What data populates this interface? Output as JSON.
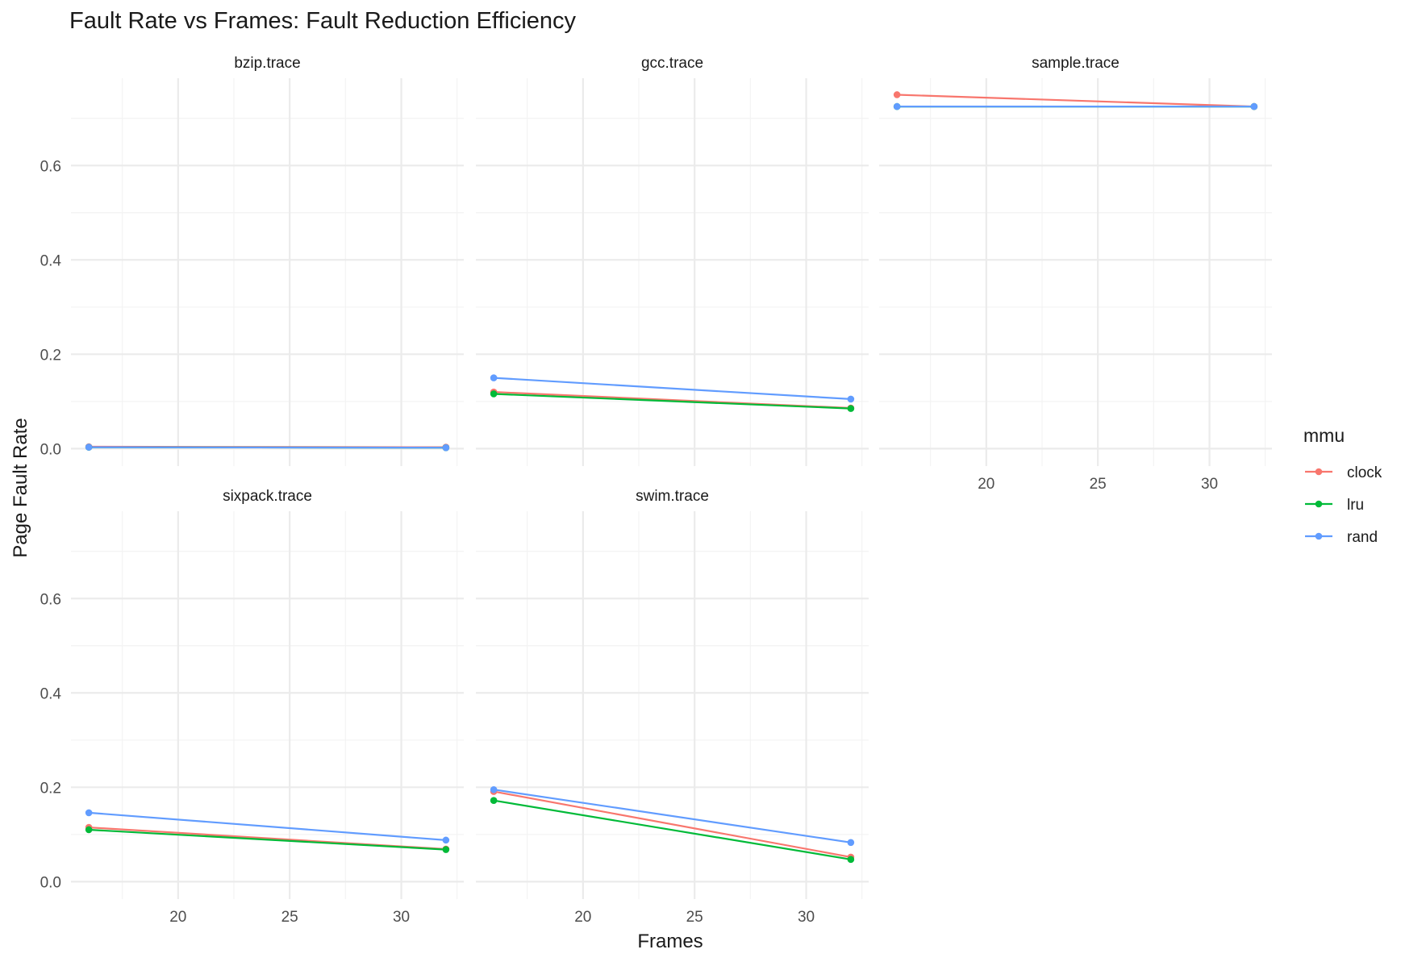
{
  "colors": {
    "clock": "#F8766D",
    "lru": "#00BA38",
    "rand": "#619CFF",
    "grid_major": "#EBEBEB",
    "grid_minor": "#F3F3F3",
    "text": "#1A1A1A",
    "tick_text": "#4D4D4D"
  },
  "chart_data": {
    "type": "line",
    "title": "Fault Rate vs Frames: Fault Reduction Efficiency",
    "xlabel": "Frames",
    "ylabel": "Page Fault Rate",
    "xlim": [
      15.2,
      32.8
    ],
    "ylim": [
      -0.037,
      0.785
    ],
    "x_ticks": [
      20,
      25,
      30
    ],
    "y_ticks": [
      0.0,
      0.2,
      0.4,
      0.6
    ],
    "grid": true,
    "legend": {
      "title": "mmu",
      "position": "right",
      "entries": [
        "clock",
        "lru",
        "rand"
      ]
    },
    "facets": [
      {
        "name": "bzip.trace",
        "series": [
          {
            "name": "clock",
            "x": [
              16,
              32
            ],
            "y": [
              0.004,
              0.003
            ]
          },
          {
            "name": "lru",
            "x": [
              16,
              32
            ],
            "y": [
              0.003,
              0.002
            ]
          },
          {
            "name": "rand",
            "x": [
              16,
              32
            ],
            "y": [
              0.003,
              0.002
            ]
          }
        ]
      },
      {
        "name": "gcc.trace",
        "series": [
          {
            "name": "clock",
            "x": [
              16,
              32
            ],
            "y": [
              0.12,
              0.086
            ]
          },
          {
            "name": "lru",
            "x": [
              16,
              32
            ],
            "y": [
              0.116,
              0.085
            ]
          },
          {
            "name": "rand",
            "x": [
              16,
              32
            ],
            "y": [
              0.15,
              0.105
            ]
          }
        ]
      },
      {
        "name": "sample.trace",
        "series": [
          {
            "name": "clock",
            "x": [
              16,
              32
            ],
            "y": [
              0.75,
              0.725
            ]
          },
          {
            "name": "lru",
            "x": [
              16,
              32
            ],
            "y": [
              0.725,
              0.725
            ]
          },
          {
            "name": "rand",
            "x": [
              16,
              32
            ],
            "y": [
              0.725,
              0.725
            ]
          }
        ]
      },
      {
        "name": "sixpack.trace",
        "series": [
          {
            "name": "clock",
            "x": [
              16,
              32
            ],
            "y": [
              0.115,
              0.069
            ]
          },
          {
            "name": "lru",
            "x": [
              16,
              32
            ],
            "y": [
              0.11,
              0.068
            ]
          },
          {
            "name": "rand",
            "x": [
              16,
              32
            ],
            "y": [
              0.146,
              0.088
            ]
          }
        ]
      },
      {
        "name": "swim.trace",
        "series": [
          {
            "name": "clock",
            "x": [
              16,
              32
            ],
            "y": [
              0.191,
              0.052
            ]
          },
          {
            "name": "lru",
            "x": [
              16,
              32
            ],
            "y": [
              0.172,
              0.047
            ]
          },
          {
            "name": "rand",
            "x": [
              16,
              32
            ],
            "y": [
              0.195,
              0.083
            ]
          }
        ]
      }
    ]
  }
}
